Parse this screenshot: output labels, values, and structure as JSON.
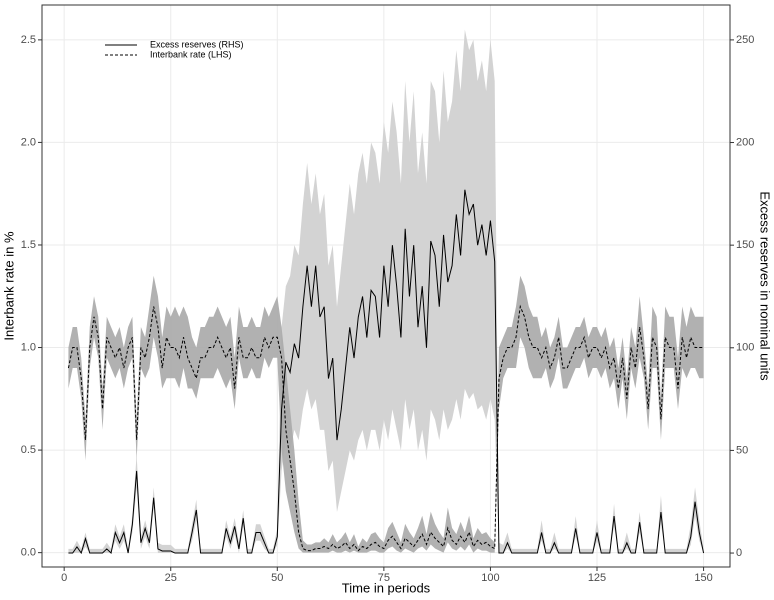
{
  "chart_data": {
    "type": "line",
    "x_label": "Time in periods",
    "y_label": "Interbank rate in %",
    "y2_label": "Excess reserves in nominal units",
    "xlim": [
      -5.2,
      156.2
    ],
    "xticks": [
      0,
      25,
      50,
      75,
      100,
      125,
      150
    ],
    "ylim": [
      -0.07,
      2.67
    ],
    "yticks": [
      {
        "value": 0,
        "label": "0.0"
      },
      {
        "value": 0.5,
        "label": "0.5"
      },
      {
        "value": 1,
        "label": "1.0"
      },
      {
        "value": 1.5,
        "label": "1.5"
      },
      {
        "value": 2,
        "label": "2.0"
      },
      {
        "value": 2.5,
        "label": "2.5"
      }
    ],
    "y2lim": [
      -6.8,
      267
    ],
    "y2ticks": [
      0,
      50,
      100,
      150,
      200,
      250
    ],
    "grid": true,
    "legend": "top-left",
    "x": [
      1,
      2,
      3,
      4,
      5,
      6,
      7,
      8,
      9,
      10,
      11,
      12,
      13,
      14,
      15,
      16,
      17,
      18,
      19,
      20,
      21,
      22,
      23,
      24,
      25,
      26,
      27,
      28,
      29,
      30,
      31,
      32,
      33,
      34,
      35,
      36,
      37,
      38,
      39,
      40,
      41,
      42,
      43,
      44,
      45,
      46,
      47,
      48,
      49,
      50,
      51,
      52,
      53,
      54,
      55,
      56,
      57,
      58,
      59,
      60,
      61,
      62,
      63,
      64,
      65,
      66,
      67,
      68,
      69,
      70,
      71,
      72,
      73,
      74,
      75,
      76,
      77,
      78,
      79,
      80,
      81,
      82,
      83,
      84,
      85,
      86,
      87,
      88,
      89,
      90,
      91,
      92,
      93,
      94,
      95,
      96,
      97,
      98,
      99,
      100,
      101,
      102,
      103,
      104,
      105,
      106,
      107,
      108,
      109,
      110,
      111,
      112,
      113,
      114,
      115,
      116,
      117,
      118,
      119,
      120,
      121,
      122,
      123,
      124,
      125,
      126,
      127,
      128,
      129,
      130,
      131,
      132,
      133,
      134,
      135,
      136,
      137,
      138,
      139,
      140,
      141,
      142,
      143,
      144,
      145,
      146,
      147,
      148,
      149,
      150
    ],
    "series": [
      {
        "name": "Excess reserves (RHS)",
        "axis": "y2",
        "color": "#000000",
        "dash": "solid",
        "band_color": "#d3d3d3",
        "values": [
          0,
          0,
          3,
          0,
          7,
          0,
          0,
          0,
          0,
          2,
          0,
          10,
          5,
          10,
          0,
          14,
          40,
          5,
          12,
          5,
          27,
          2,
          1,
          1,
          1,
          0,
          0,
          0,
          0,
          10,
          21,
          0,
          0,
          0,
          0,
          0,
          0,
          12,
          5,
          13,
          2,
          17,
          0,
          0,
          10,
          10,
          5,
          0,
          0,
          8,
          70,
          93,
          88,
          102,
          95,
          120,
          140,
          120,
          140,
          115,
          120,
          85,
          95,
          55,
          70,
          90,
          110,
          95,
          115,
          125,
          105,
          128,
          125,
          105,
          140,
          120,
          150,
          130,
          105,
          158,
          125,
          150,
          110,
          130,
          100,
          152,
          145,
          120,
          155,
          132,
          140,
          165,
          145,
          177,
          165,
          170,
          150,
          160,
          145,
          162,
          142,
          0,
          0,
          5,
          0,
          0,
          0,
          0,
          0,
          0,
          0,
          10,
          0,
          0,
          5,
          0,
          0,
          0,
          0,
          12,
          0,
          0,
          0,
          0,
          10,
          0,
          0,
          0,
          18,
          0,
          0,
          5,
          0,
          0,
          15,
          0,
          0,
          0,
          0,
          20,
          0,
          0,
          0,
          0,
          0,
          0,
          8,
          25,
          10,
          0
        ],
        "lower": [
          0,
          0,
          0,
          0,
          3,
          0,
          0,
          0,
          0,
          0,
          0,
          6,
          2,
          6,
          0,
          10,
          32,
          2,
          8,
          2,
          22,
          0,
          0,
          0,
          0,
          0,
          0,
          0,
          0,
          6,
          16,
          0,
          0,
          0,
          0,
          0,
          0,
          8,
          2,
          9,
          0,
          13,
          0,
          0,
          6,
          6,
          2,
          0,
          0,
          4,
          40,
          55,
          50,
          60,
          55,
          70,
          80,
          70,
          75,
          60,
          60,
          40,
          45,
          20,
          30,
          40,
          50,
          45,
          55,
          60,
          50,
          60,
          60,
          50,
          65,
          55,
          70,
          60,
          50,
          75,
          60,
          70,
          50,
          60,
          45,
          70,
          65,
          55,
          70,
          60,
          65,
          75,
          65,
          80,
          75,
          78,
          70,
          72,
          65,
          75,
          65,
          0,
          0,
          2,
          0,
          0,
          0,
          0,
          0,
          0,
          0,
          6,
          0,
          0,
          2,
          0,
          0,
          0,
          0,
          8,
          0,
          0,
          0,
          0,
          6,
          0,
          0,
          0,
          13,
          0,
          0,
          2,
          0,
          0,
          10,
          0,
          0,
          0,
          0,
          14,
          0,
          0,
          0,
          0,
          0,
          0,
          4,
          18,
          6,
          0
        ],
        "upper": [
          2,
          2,
          6,
          2,
          10,
          2,
          2,
          2,
          2,
          5,
          2,
          14,
          8,
          14,
          2,
          18,
          48,
          8,
          16,
          8,
          32,
          5,
          4,
          4,
          4,
          2,
          2,
          2,
          2,
          14,
          26,
          2,
          2,
          2,
          2,
          2,
          2,
          16,
          8,
          17,
          5,
          21,
          2,
          2,
          14,
          14,
          8,
          2,
          2,
          12,
          110,
          130,
          135,
          150,
          145,
          170,
          190,
          170,
          185,
          165,
          175,
          140,
          150,
          120,
          140,
          160,
          180,
          165,
          185,
          195,
          180,
          200,
          195,
          180,
          210,
          195,
          220,
          205,
          180,
          230,
          200,
          225,
          185,
          205,
          180,
          230,
          225,
          200,
          235,
          210,
          220,
          245,
          225,
          255,
          245,
          250,
          230,
          240,
          225,
          250,
          230,
          5,
          4,
          10,
          2,
          2,
          2,
          2,
          2,
          2,
          2,
          16,
          2,
          2,
          10,
          2,
          2,
          2,
          2,
          18,
          2,
          2,
          2,
          2,
          16,
          2,
          2,
          2,
          24,
          2,
          2,
          10,
          2,
          2,
          20,
          2,
          2,
          2,
          2,
          28,
          2,
          2,
          2,
          2,
          2,
          2,
          14,
          32,
          16,
          2
        ]
      },
      {
        "name": "Interbank rate (LHS)",
        "axis": "y",
        "color": "#000000",
        "dash": "dashed",
        "band_color": "#a9a9a9",
        "values": [
          0.9,
          1.0,
          1.0,
          0.85,
          0.55,
          1.0,
          1.15,
          1.05,
          0.7,
          1.05,
          1.0,
          0.95,
          1.0,
          0.9,
          1.0,
          1.05,
          0.55,
          1.0,
          0.95,
          1.05,
          1.2,
          1.1,
          0.9,
          1.05,
          1.0,
          1.0,
          0.95,
          1.05,
          0.95,
          0.9,
          0.85,
          0.95,
          0.95,
          1.0,
          1.0,
          1.05,
          1.0,
          0.95,
          1.0,
          0.8,
          1.05,
          0.95,
          0.95,
          1.0,
          0.95,
          0.95,
          1.05,
          1.0,
          1.05,
          1.05,
          0.95,
          0.6,
          0.45,
          0.3,
          0.1,
          0.02,
          0.01,
          0.01,
          0.02,
          0.02,
          0.03,
          0.02,
          0.04,
          0.02,
          0.03,
          0.05,
          0.02,
          0.04,
          0.01,
          0.03,
          0.02,
          0.04,
          0.05,
          0.03,
          0.02,
          0.06,
          0.08,
          0.05,
          0.02,
          0.07,
          0.05,
          0.03,
          0.06,
          0.09,
          0.04,
          0.1,
          0.07,
          0.05,
          0.03,
          0.12,
          0.06,
          0.04,
          0.08,
          0.05,
          0.1,
          0.03,
          0.06,
          0.04,
          0.05,
          0.03,
          0.02,
          0.85,
          0.95,
          1.0,
          1.0,
          1.05,
          1.2,
          1.15,
          1.05,
          1.0,
          1.0,
          0.95,
          1.0,
          0.9,
          0.95,
          1.05,
          0.9,
          0.9,
          0.95,
          1.0,
          1.0,
          1.05,
          0.95,
          1.0,
          1.0,
          0.95,
          1.0,
          0.9,
          0.95,
          0.8,
          0.95,
          0.75,
          1.0,
          0.9,
          1.1,
          0.95,
          0.7,
          1.05,
          1.0,
          0.65,
          1.05,
          1.0,
          1.0,
          0.8,
          1.05,
          0.95,
          1.05,
          1.0,
          1.0,
          1.0
        ],
        "lower": [
          0.8,
          0.9,
          0.9,
          0.75,
          0.45,
          0.9,
          1.05,
          0.95,
          0.6,
          0.95,
          0.9,
          0.85,
          0.9,
          0.8,
          0.9,
          0.95,
          0.45,
          0.9,
          0.85,
          0.9,
          1.05,
          0.95,
          0.8,
          0.85,
          0.85,
          0.85,
          0.8,
          0.9,
          0.8,
          0.8,
          0.75,
          0.85,
          0.85,
          0.85,
          0.85,
          0.9,
          0.85,
          0.8,
          0.85,
          0.7,
          0.95,
          0.85,
          0.85,
          0.9,
          0.85,
          0.85,
          0.95,
          0.9,
          0.95,
          0.95,
          0.5,
          0.3,
          0.2,
          0.1,
          0.02,
          0,
          0,
          0,
          0,
          0,
          0,
          0,
          0.01,
          0,
          0,
          0.01,
          0,
          0.01,
          0,
          0,
          0,
          0.01,
          0.01,
          0,
          0,
          0.02,
          0.03,
          0.01,
          0,
          0.02,
          0.01,
          0,
          0.02,
          0.03,
          0.01,
          0.04,
          0.02,
          0.01,
          0,
          0.05,
          0.02,
          0.01,
          0.03,
          0.01,
          0.04,
          0,
          0.02,
          0.01,
          0.01,
          0,
          0,
          0.7,
          0.85,
          0.9,
          0.9,
          0.9,
          1.05,
          1.0,
          0.9,
          0.85,
          0.85,
          0.85,
          0.9,
          0.8,
          0.85,
          0.95,
          0.8,
          0.8,
          0.85,
          0.9,
          0.9,
          0.95,
          0.85,
          0.9,
          0.9,
          0.85,
          0.9,
          0.8,
          0.85,
          0.7,
          0.85,
          0.65,
          0.9,
          0.8,
          0.95,
          0.85,
          0.6,
          0.9,
          0.9,
          0.55,
          0.9,
          0.9,
          0.9,
          0.7,
          0.9,
          0.85,
          0.9,
          0.9,
          0.85,
          0.85
        ],
        "upper": [
          1.0,
          1.1,
          1.1,
          0.95,
          0.65,
          1.1,
          1.25,
          1.15,
          0.8,
          1.15,
          1.1,
          1.05,
          1.1,
          1.0,
          1.1,
          1.15,
          0.65,
          1.1,
          1.05,
          1.2,
          1.35,
          1.25,
          1.05,
          1.2,
          1.15,
          1.2,
          1.15,
          1.2,
          1.15,
          1.05,
          1.0,
          1.1,
          1.1,
          1.15,
          1.15,
          1.2,
          1.15,
          1.1,
          1.15,
          0.95,
          1.2,
          1.1,
          1.1,
          1.15,
          1.1,
          1.1,
          1.2,
          1.15,
          1.2,
          1.25,
          1.1,
          0.9,
          0.7,
          0.5,
          0.25,
          0.06,
          0.04,
          0.04,
          0.05,
          0.05,
          0.07,
          0.05,
          0.09,
          0.05,
          0.07,
          0.1,
          0.05,
          0.09,
          0.03,
          0.07,
          0.05,
          0.09,
          0.1,
          0.07,
          0.05,
          0.12,
          0.15,
          0.1,
          0.05,
          0.14,
          0.1,
          0.07,
          0.12,
          0.18,
          0.09,
          0.2,
          0.14,
          0.1,
          0.07,
          0.22,
          0.12,
          0.09,
          0.15,
          0.1,
          0.18,
          0.07,
          0.12,
          0.09,
          0.1,
          0.07,
          0.05,
          1.0,
          1.05,
          1.1,
          1.1,
          1.2,
          1.35,
          1.3,
          1.2,
          1.15,
          1.15,
          1.05,
          1.1,
          1.0,
          1.05,
          1.15,
          1.0,
          1.0,
          1.05,
          1.1,
          1.1,
          1.15,
          1.05,
          1.1,
          1.1,
          1.05,
          1.1,
          1.0,
          1.05,
          0.9,
          1.05,
          0.85,
          1.1,
          1.0,
          1.25,
          1.05,
          0.8,
          1.2,
          1.15,
          0.75,
          1.2,
          1.15,
          1.15,
          0.95,
          1.2,
          1.1,
          1.2,
          1.15,
          1.15,
          1.15
        ]
      }
    ]
  }
}
